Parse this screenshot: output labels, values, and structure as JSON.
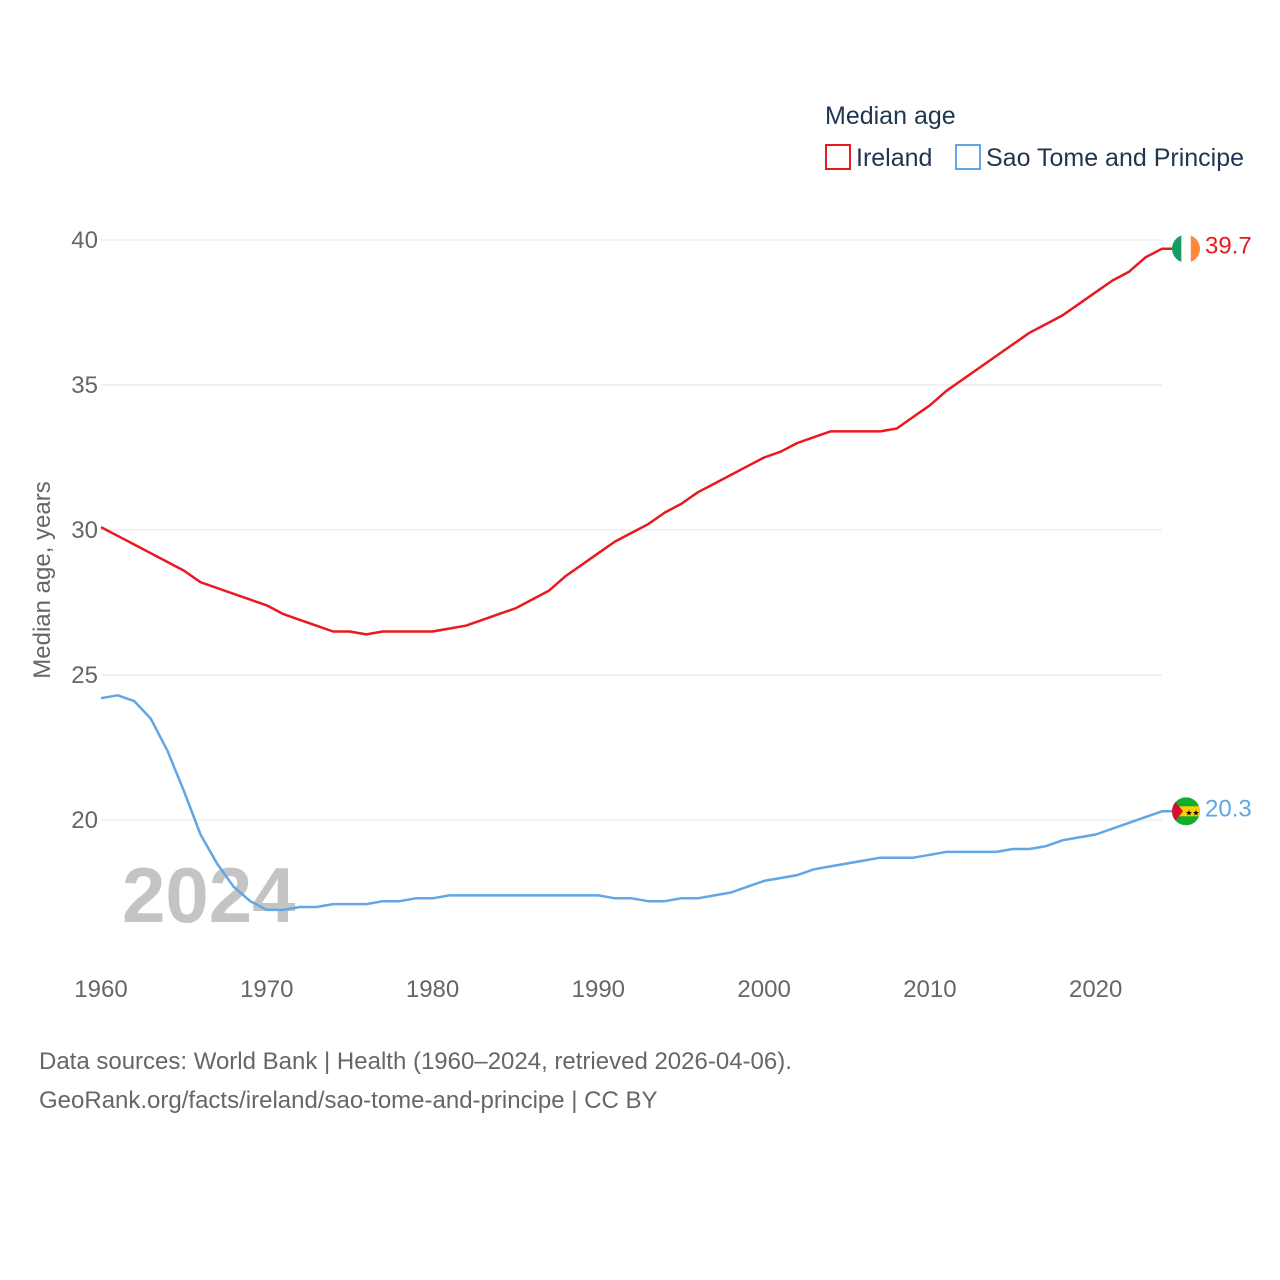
{
  "colors": {
    "ireland": "#e8191f",
    "sao_tome": "#62a6e6",
    "grid": "#e6e6e6",
    "tick": "#666666",
    "legend_text": "#1f3550",
    "watermark": "#c4c4c4"
  },
  "chart_data": {
    "type": "line",
    "title": "",
    "xlabel": "",
    "ylabel": "Median age, years",
    "xlim": [
      1960,
      2024
    ],
    "ylim": [
      16,
      40
    ],
    "y_ticks": [
      20,
      25,
      30,
      35,
      40
    ],
    "x_ticks": [
      1960,
      1970,
      1980,
      1990,
      2000,
      2010,
      2020
    ],
    "grid": true,
    "legend": {
      "title": "Median age",
      "position": "top-right"
    },
    "year_label": "2024",
    "x": [
      1960,
      1961,
      1962,
      1963,
      1964,
      1965,
      1966,
      1967,
      1968,
      1969,
      1970,
      1971,
      1972,
      1973,
      1974,
      1975,
      1976,
      1977,
      1978,
      1979,
      1980,
      1981,
      1982,
      1983,
      1984,
      1985,
      1986,
      1987,
      1988,
      1989,
      1990,
      1991,
      1992,
      1993,
      1994,
      1995,
      1996,
      1997,
      1998,
      1999,
      2000,
      2001,
      2002,
      2003,
      2004,
      2005,
      2006,
      2007,
      2008,
      2009,
      2010,
      2011,
      2012,
      2013,
      2014,
      2015,
      2016,
      2017,
      2018,
      2019,
      2020,
      2021,
      2022,
      2023,
      2024
    ],
    "series": [
      {
        "name": "Ireland",
        "key": "ireland",
        "end_label": "39.7",
        "flag": "ireland-flag",
        "values": [
          30.1,
          29.8,
          29.5,
          29.2,
          28.9,
          28.6,
          28.2,
          28.0,
          27.8,
          27.6,
          27.4,
          27.1,
          26.9,
          26.7,
          26.5,
          26.5,
          26.4,
          26.5,
          26.5,
          26.5,
          26.5,
          26.6,
          26.7,
          26.9,
          27.1,
          27.3,
          27.6,
          27.9,
          28.4,
          28.8,
          29.2,
          29.6,
          29.9,
          30.2,
          30.6,
          30.9,
          31.3,
          31.6,
          31.9,
          32.2,
          32.5,
          32.7,
          33.0,
          33.2,
          33.4,
          33.4,
          33.4,
          33.4,
          33.5,
          33.9,
          34.3,
          34.8,
          35.2,
          35.6,
          36.0,
          36.4,
          36.8,
          37.1,
          37.4,
          37.8,
          38.2,
          38.6,
          38.9,
          39.4,
          39.7
        ]
      },
      {
        "name": "Sao Tome and Principe",
        "key": "sao_tome",
        "end_label": "20.3",
        "flag": "sao-tome-flag",
        "values": [
          24.2,
          24.3,
          24.1,
          23.5,
          22.4,
          21.0,
          19.5,
          18.5,
          17.7,
          17.2,
          16.9,
          16.9,
          17.0,
          17.0,
          17.1,
          17.1,
          17.1,
          17.2,
          17.2,
          17.3,
          17.3,
          17.4,
          17.4,
          17.4,
          17.4,
          17.4,
          17.4,
          17.4,
          17.4,
          17.4,
          17.4,
          17.3,
          17.3,
          17.2,
          17.2,
          17.3,
          17.3,
          17.4,
          17.5,
          17.7,
          17.9,
          18.0,
          18.1,
          18.3,
          18.4,
          18.5,
          18.6,
          18.7,
          18.7,
          18.7,
          18.8,
          18.9,
          18.9,
          18.9,
          18.9,
          19.0,
          19.0,
          19.1,
          19.3,
          19.4,
          19.5,
          19.7,
          19.9,
          20.1,
          20.3
        ]
      }
    ]
  },
  "footer": {
    "line1": "Data sources: World Bank | Health (1960–2024, retrieved 2026-04-06).",
    "line2": "GeoRank.org/facts/ireland/sao-tome-and-principe | CC BY"
  }
}
